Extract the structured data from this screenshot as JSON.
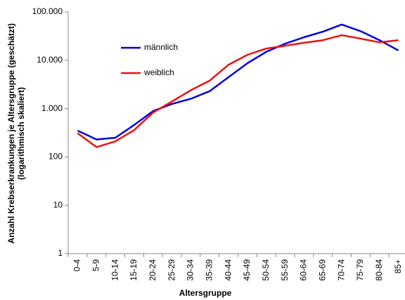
{
  "chart_data": {
    "type": "line",
    "categories": [
      "0-4",
      "5-9",
      "10-14",
      "15-19",
      "20-24",
      "25-29",
      "30-34",
      "35-39",
      "40-44",
      "45-49",
      "50-54",
      "55-59",
      "60-64",
      "65-69",
      "70-74",
      "75-79",
      "80-84",
      "85+"
    ],
    "series": [
      {
        "name": "männlich",
        "color": "#0000e0",
        "values": [
          350,
          230,
          250,
          460,
          890,
          1250,
          1600,
          2300,
          4500,
          8700,
          15000,
          22000,
          30000,
          39000,
          55000,
          40000,
          26000,
          16000
        ]
      },
      {
        "name": "weiblich",
        "color": "#ee1111",
        "values": [
          310,
          160,
          210,
          360,
          830,
          1400,
          2400,
          3800,
          8100,
          13000,
          17500,
          20000,
          23000,
          26000,
          33000,
          28000,
          23500,
          26000
        ]
      }
    ],
    "xlabel": "Altersgruppe",
    "ylabel": [
      "Anzahl Krebserkrankungen je Altersgruppe (geschätzt)",
      "(logarithmisch skaliert)"
    ],
    "ylim": [
      1,
      100000
    ],
    "yticks": [
      1,
      10,
      100,
      {
        "value": 1000,
        "label": "1.000"
      },
      {
        "value": 10000,
        "label": "10.000"
      },
      {
        "value": 100000,
        "label": "100.000"
      }
    ],
    "log_scale": true,
    "grid": false,
    "legend": "upper left"
  }
}
